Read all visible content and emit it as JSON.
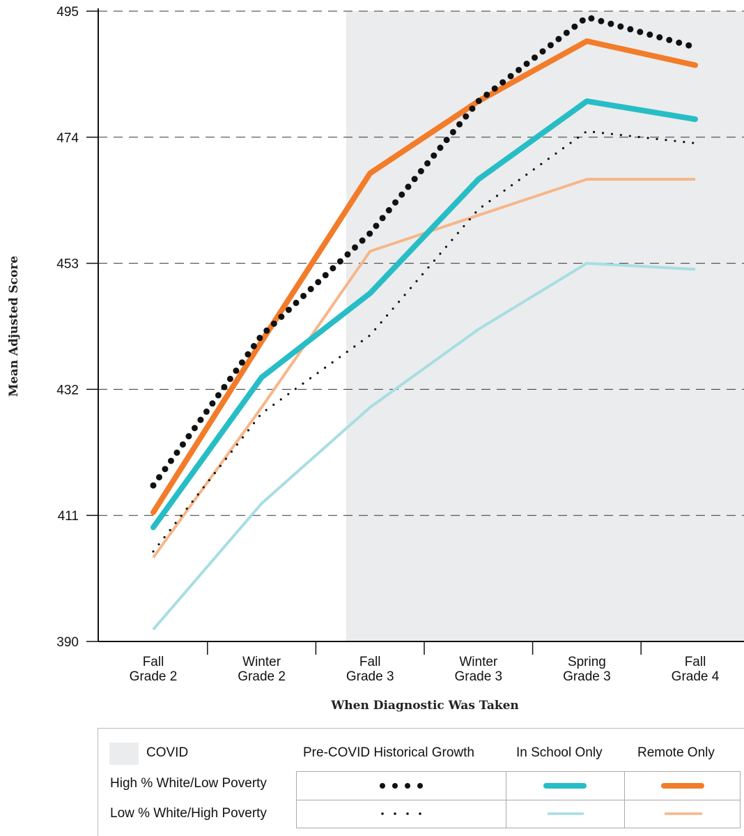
{
  "chart_data": {
    "type": "line",
    "xlabel": "When Diagnostic Was Taken",
    "ylabel": "Mean Adjusted Score",
    "ylim": [
      390,
      495
    ],
    "yticks": [
      390,
      411,
      432,
      453,
      474,
      495
    ],
    "grid": "horizontal dashed",
    "categories": [
      [
        "Fall",
        "Grade 2"
      ],
      [
        "Winter",
        "Grade 2"
      ],
      [
        "Fall",
        "Grade 3"
      ],
      [
        "Winter",
        "Grade 3"
      ],
      [
        "Spring",
        "Grade 3"
      ],
      [
        "Fall",
        "Grade 4"
      ]
    ],
    "covid_shading_start": 1.78,
    "series": [
      {
        "name": "High % White/Low Poverty — Pre-COVID Historical Growth",
        "style": "dotted-bold",
        "color": "#111111",
        "values": [
          416,
          441,
          458,
          480,
          494,
          489
        ]
      },
      {
        "name": "Low % White/High Poverty — Pre-COVID Historical Growth",
        "style": "dotted-thin",
        "color": "#111111",
        "values": [
          405,
          428,
          441,
          462,
          475,
          473
        ]
      },
      {
        "name": "High % White/Low Poverty — In School Only",
        "style": "solid-bold",
        "color": "#27bdc6",
        "values": [
          409,
          434,
          448,
          467,
          480,
          477
        ]
      },
      {
        "name": "Low % White/High Poverty — In School Only",
        "style": "solid-thin",
        "color": "#a6dee3",
        "values": [
          392,
          413,
          429,
          442,
          453,
          452
        ]
      },
      {
        "name": "High % White/Low Poverty — Remote Only",
        "style": "solid-bold",
        "color": "#f27c2a",
        "values": [
          411.5,
          440,
          468,
          480,
          490,
          486
        ]
      },
      {
        "name": "Low % White/High Poverty — Remote Only",
        "style": "solid-thin",
        "color": "#f6b68a",
        "values": [
          404,
          429,
          455,
          461,
          467,
          467
        ]
      }
    ]
  },
  "legend": {
    "covid_label": "COVID",
    "covid_color": "#ebeced",
    "columns": [
      "Pre-COVID Historical Growth",
      "In School Only",
      "Remote Only"
    ],
    "rows": [
      "High % White/Low Poverty",
      "Low % White/High Poverty"
    ]
  }
}
